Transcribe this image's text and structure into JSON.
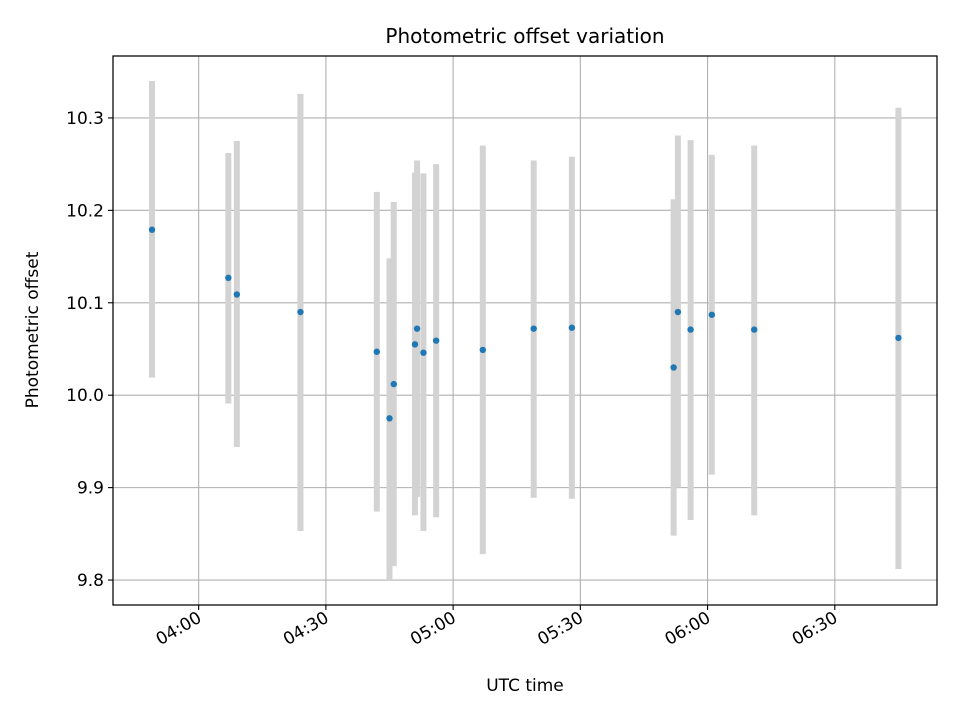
{
  "chart_data": {
    "type": "scatter",
    "title": "Photometric offset variation",
    "xlabel": "UTC time",
    "ylabel": "Photometric offset",
    "x_ticks": [
      "04:00",
      "04:30",
      "05:00",
      "05:30",
      "06:00",
      "06:30"
    ],
    "y_ticks": [
      "9.8",
      "9.9",
      "10.0",
      "10.1",
      "10.2",
      "10.3"
    ],
    "xlim": [
      "03:39.8",
      "06:54.1"
    ],
    "ylim": [
      9.773,
      10.367
    ],
    "grid": true,
    "colors": {
      "point": "#1f77b4",
      "errorbar": "#d3d3d3",
      "grid": "#b0b0b0"
    },
    "points": [
      {
        "x": "03:49",
        "y": 10.179,
        "ylow": 10.019,
        "yhigh": 10.34
      },
      {
        "x": "04:07",
        "y": 10.127,
        "ylow": 9.991,
        "yhigh": 10.262
      },
      {
        "x": "04:09",
        "y": 10.109,
        "ylow": 9.944,
        "yhigh": 10.275
      },
      {
        "x": "04:24",
        "y": 10.09,
        "ylow": 9.853,
        "yhigh": 10.326
      },
      {
        "x": "04:42",
        "y": 10.047,
        "ylow": 9.874,
        "yhigh": 10.22
      },
      {
        "x": "04:45",
        "y": 9.975,
        "ylow": 9.8,
        "yhigh": 10.148
      },
      {
        "x": "04:46",
        "y": 10.012,
        "ylow": 9.815,
        "yhigh": 10.209
      },
      {
        "x": "04:51",
        "y": 10.055,
        "ylow": 9.87,
        "yhigh": 10.241
      },
      {
        "x": "04:51.5",
        "y": 10.072,
        "ylow": 9.89,
        "yhigh": 10.254
      },
      {
        "x": "04:53",
        "y": 10.046,
        "ylow": 9.853,
        "yhigh": 10.24
      },
      {
        "x": "04:56",
        "y": 10.059,
        "ylow": 9.868,
        "yhigh": 10.25
      },
      {
        "x": "05:07",
        "y": 10.049,
        "ylow": 9.828,
        "yhigh": 10.27
      },
      {
        "x": "05:19",
        "y": 10.072,
        "ylow": 9.889,
        "yhigh": 10.254
      },
      {
        "x": "05:28",
        "y": 10.073,
        "ylow": 9.888,
        "yhigh": 10.258
      },
      {
        "x": "05:52",
        "y": 10.03,
        "ylow": 9.848,
        "yhigh": 10.212
      },
      {
        "x": "05:53",
        "y": 10.09,
        "ylow": 9.9,
        "yhigh": 10.281
      },
      {
        "x": "05:56",
        "y": 10.071,
        "ylow": 9.865,
        "yhigh": 10.276
      },
      {
        "x": "06:01",
        "y": 10.087,
        "ylow": 9.914,
        "yhigh": 10.26
      },
      {
        "x": "06:11",
        "y": 10.071,
        "ylow": 9.87,
        "yhigh": 10.27
      },
      {
        "x": "06:45",
        "y": 10.062,
        "ylow": 9.812,
        "yhigh": 10.311
      }
    ]
  }
}
